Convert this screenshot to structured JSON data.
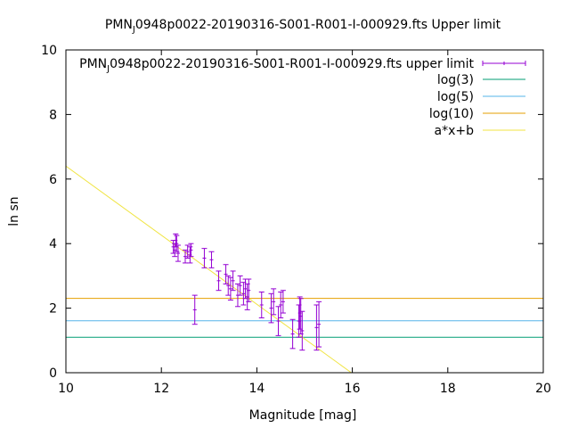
{
  "chart_data": {
    "type": "scatter",
    "title": {
      "pre": "PMN",
      "sub": "J",
      "post": "0948p0022-20190316-S001-R001-I-000929.fts Upper limit"
    },
    "xlabel": "Magnitude [mag]",
    "ylabel": "ln sn",
    "xlim": [
      10,
      20
    ],
    "ylim": [
      0,
      10
    ],
    "xticks": [
      10,
      12,
      14,
      16,
      18,
      20
    ],
    "yticks": [
      0,
      2,
      4,
      6,
      8,
      10
    ],
    "grid": false,
    "legend_position": "top-right",
    "series": [
      {
        "name": {
          "pre": "PMN",
          "sub": "J",
          "post": "0948p0022-20190316-S001-R001-I-000929.fts upper limit"
        },
        "kind": "errorbar",
        "color": "#9400d3",
        "points": [
          {
            "x": 12.25,
            "y": 3.9,
            "err": 0.2
          },
          {
            "x": 12.28,
            "y": 3.8,
            "err": 0.2
          },
          {
            "x": 12.3,
            "y": 4.1,
            "err": 0.2
          },
          {
            "x": 12.32,
            "y": 4.0,
            "err": 0.25
          },
          {
            "x": 12.35,
            "y": 3.7,
            "err": 0.25
          },
          {
            "x": 12.5,
            "y": 3.6,
            "err": 0.2
          },
          {
            "x": 12.55,
            "y": 3.75,
            "err": 0.2
          },
          {
            "x": 12.6,
            "y": 3.65,
            "err": 0.25
          },
          {
            "x": 12.62,
            "y": 3.8,
            "err": 0.2
          },
          {
            "x": 12.7,
            "y": 1.95,
            "err": 0.45
          },
          {
            "x": 12.9,
            "y": 3.55,
            "err": 0.3
          },
          {
            "x": 13.05,
            "y": 3.5,
            "err": 0.25
          },
          {
            "x": 13.2,
            "y": 2.85,
            "err": 0.3
          },
          {
            "x": 13.35,
            "y": 3.05,
            "err": 0.3
          },
          {
            "x": 13.4,
            "y": 2.7,
            "err": 0.3
          },
          {
            "x": 13.45,
            "y": 2.6,
            "err": 0.35
          },
          {
            "x": 13.5,
            "y": 2.85,
            "err": 0.3
          },
          {
            "x": 13.6,
            "y": 2.4,
            "err": 0.35
          },
          {
            "x": 13.65,
            "y": 2.7,
            "err": 0.3
          },
          {
            "x": 13.72,
            "y": 2.45,
            "err": 0.35
          },
          {
            "x": 13.76,
            "y": 2.6,
            "err": 0.3
          },
          {
            "x": 13.8,
            "y": 2.35,
            "err": 0.4
          },
          {
            "x": 13.83,
            "y": 2.55,
            "err": 0.35
          },
          {
            "x": 14.1,
            "y": 2.1,
            "err": 0.4
          },
          {
            "x": 14.3,
            "y": 2.0,
            "err": 0.45
          },
          {
            "x": 14.35,
            "y": 2.2,
            "err": 0.4
          },
          {
            "x": 14.45,
            "y": 1.6,
            "err": 0.45
          },
          {
            "x": 14.5,
            "y": 2.1,
            "err": 0.4
          },
          {
            "x": 14.55,
            "y": 2.2,
            "err": 0.35
          },
          {
            "x": 14.75,
            "y": 1.2,
            "err": 0.45
          },
          {
            "x": 14.88,
            "y": 1.6,
            "err": 0.5
          },
          {
            "x": 14.9,
            "y": 1.85,
            "err": 0.5
          },
          {
            "x": 14.92,
            "y": 1.75,
            "err": 0.55
          },
          {
            "x": 14.95,
            "y": 1.3,
            "err": 0.6
          },
          {
            "x": 15.25,
            "y": 1.4,
            "err": 0.7
          },
          {
            "x": 15.3,
            "y": 1.5,
            "err": 0.7
          }
        ]
      },
      {
        "name": "log(3)",
        "kind": "hline",
        "color": "#009e73",
        "y": 1.0986
      },
      {
        "name": "log(5)",
        "kind": "hline",
        "color": "#56b4e9",
        "y": 1.6094
      },
      {
        "name": "log(10)",
        "kind": "hline",
        "color": "#e69f00",
        "y": 2.3026
      },
      {
        "name": "a*x+b",
        "kind": "line",
        "color": "#f0e442",
        "x": [
          10,
          15.98
        ],
        "y": [
          6.4,
          0
        ]
      }
    ]
  }
}
